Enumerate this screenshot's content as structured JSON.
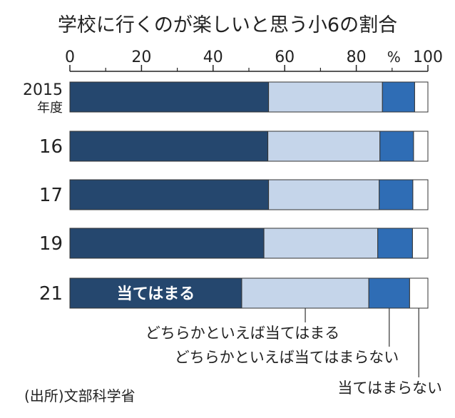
{
  "chart_data": {
    "type": "bar",
    "orientation": "horizontal",
    "stacked": true,
    "normalized": true,
    "title": "学校に行くのが楽しいと思う小6の割合",
    "xlabel": "%",
    "ylabel": "",
    "xlim": [
      0,
      100
    ],
    "x_ticks": [
      "0",
      "20",
      "40",
      "60",
      "80",
      "100"
    ],
    "categories": [
      "2015",
      "16",
      "17",
      "19",
      "21"
    ],
    "category_suffix": "年度",
    "series": [
      {
        "name": "当てはまる",
        "color": "#25476e",
        "values": [
          55.5,
          55.3,
          55.5,
          54.2,
          48.0
        ]
      },
      {
        "name": "どちらかといえば当てはまる",
        "color": "#c5d5ea",
        "values": [
          31.8,
          31.3,
          30.9,
          31.8,
          35.5
        ]
      },
      {
        "name": "どちらかといえば当てはまらない",
        "color": "#2f6db5",
        "values": [
          9.0,
          9.4,
          9.4,
          9.7,
          11.4
        ]
      },
      {
        "name": "当てはまらない",
        "color": "#ffffff",
        "values": [
          3.7,
          4.0,
          4.2,
          4.3,
          5.1
        ]
      }
    ],
    "inline_label": "当てはまる",
    "legend": "callouts-bottom",
    "grid": false,
    "source": "(出所)文部科学省"
  }
}
